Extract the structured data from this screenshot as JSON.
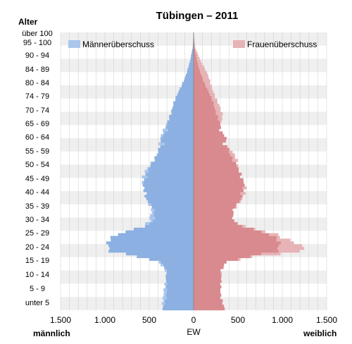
{
  "chart_data": {
    "type": "bar",
    "orientation": "horizontal-pyramid",
    "title": "Tübingen – 2011",
    "y_axis_title": "Alter",
    "x_axis_title": "EW",
    "left_label": "männlich",
    "right_label": "weiblich",
    "xlim": [
      -1500,
      1500
    ],
    "x_tick_labels": [
      "1.500",
      "1.000",
      "500",
      "0",
      "500",
      "1.000",
      "1.500"
    ],
    "x_tick_values": [
      -1500,
      -1000,
      -500,
      0,
      500,
      1000,
      1500
    ],
    "y_tick_labels": [
      "über 100",
      "95 - 100",
      "90 - 94",
      "84 - 89",
      "80 - 84",
      "74 - 79",
      "70 - 74",
      "65 - 69",
      "60 - 64",
      "55 - 59",
      "50 - 54",
      "45 - 49",
      "40 - 44",
      "35 - 39",
      "30 - 34",
      "25 - 29",
      "20 - 24",
      "15 - 19",
      "10 - 14",
      "5 - 9",
      "unter 5"
    ],
    "age_range": [
      0,
      101
    ],
    "legend": [
      {
        "label": "Männerüberschuss",
        "color": "#a9c6ec"
      },
      {
        "label": "Frauenüberschuss",
        "color": "#e6b3b6"
      }
    ],
    "colors": {
      "male": "#8cb0e2",
      "female": "#d98a8e",
      "male_surplus": "#a9c6ec",
      "female_surplus": "#e6b3b6",
      "band": "#efefef",
      "grid": "#bbbbbb"
    },
    "age_key_points": [
      0,
      4,
      9,
      14,
      17,
      19,
      21,
      23,
      25,
      27,
      30,
      32,
      36,
      40,
      45,
      50,
      55,
      58,
      60,
      62,
      65,
      70,
      75,
      80,
      85,
      90,
      95,
      101
    ],
    "male_key_values": [
      350,
      330,
      330,
      320,
      380,
      600,
      920,
      980,
      1000,
      900,
      560,
      480,
      460,
      560,
      570,
      530,
      450,
      400,
      380,
      360,
      330,
      280,
      220,
      150,
      90,
      40,
      10,
      0
    ],
    "female_key_values": [
      340,
      320,
      310,
      300,
      370,
      700,
      1280,
      1250,
      1050,
      900,
      560,
      450,
      470,
      540,
      570,
      540,
      470,
      400,
      330,
      380,
      310,
      320,
      270,
      220,
      160,
      80,
      20,
      0
    ]
  }
}
